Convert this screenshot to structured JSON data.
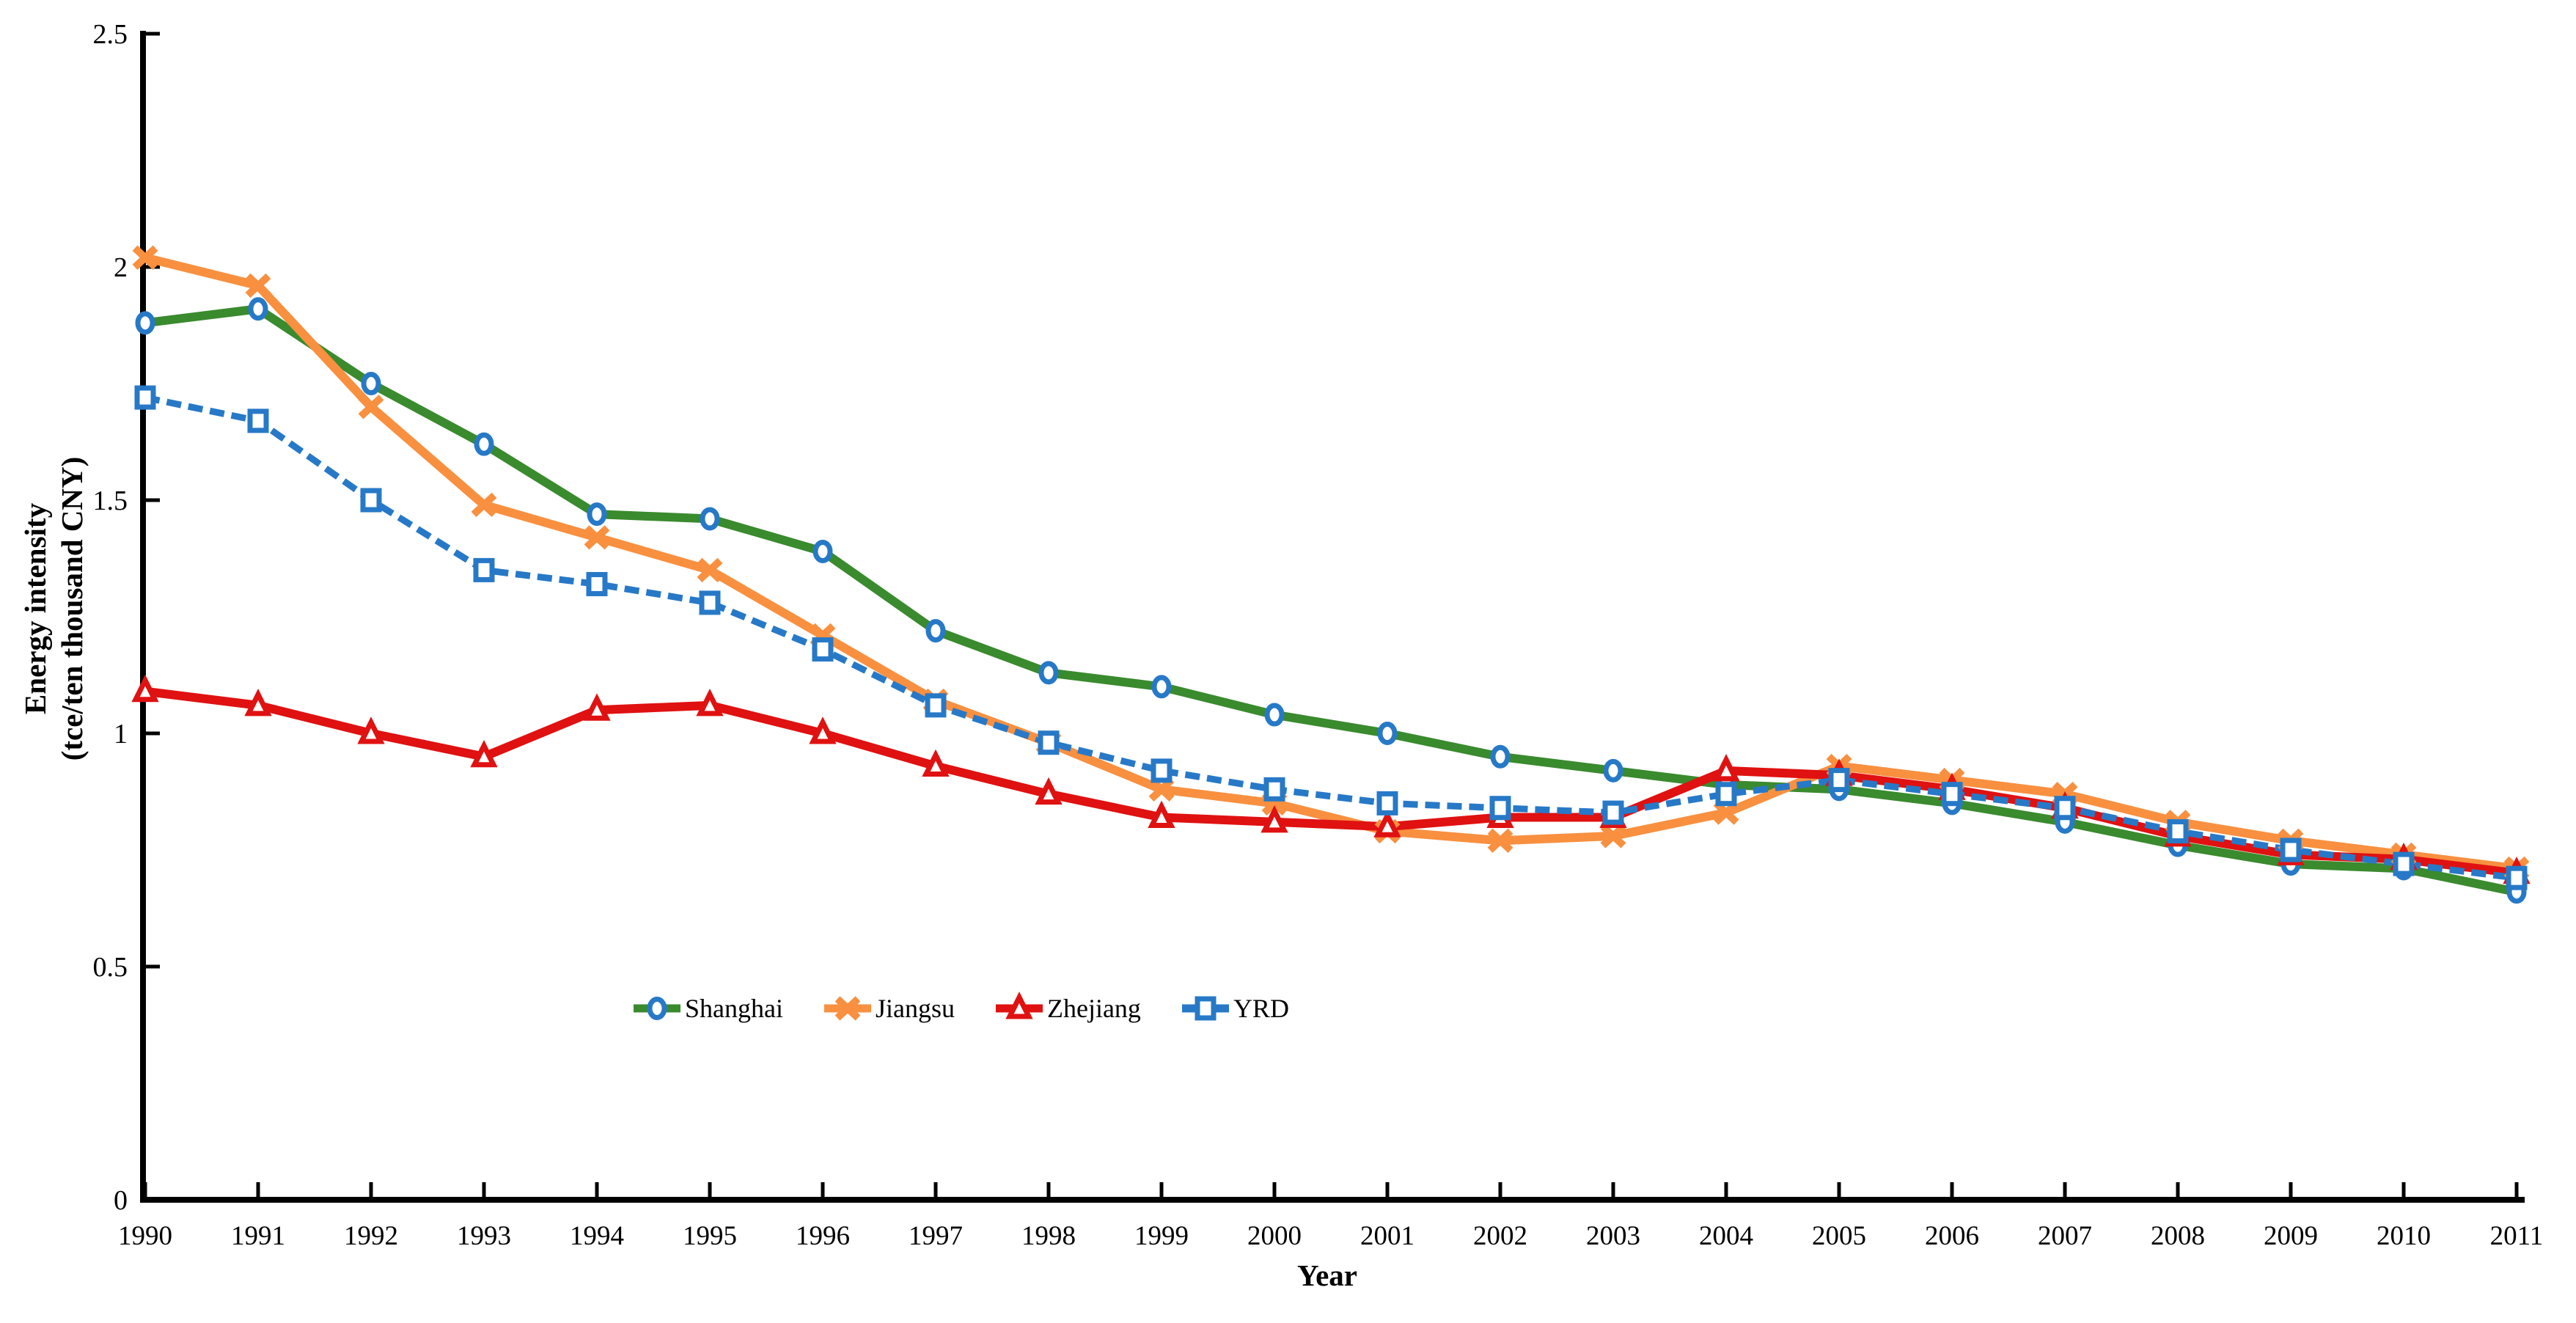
{
  "chart_data": {
    "type": "line",
    "title": "",
    "xlabel": "Year",
    "ylabel_lines": [
      "Energy intensity",
      "(tce/ten thousand CNY)"
    ],
    "x": [
      1990,
      1991,
      1992,
      1993,
      1994,
      1995,
      1996,
      1997,
      1998,
      1999,
      2000,
      2001,
      2002,
      2003,
      2004,
      2005,
      2006,
      2007,
      2008,
      2009,
      2010,
      2011
    ],
    "x_tick_labels": [
      "1990",
      "1991",
      "1992",
      "1993",
      "1994",
      "1995",
      "1996",
      "1997",
      "1998",
      "1999",
      "2000",
      "2001",
      "2002",
      "2003",
      "2004",
      "2005",
      "2006",
      "2007",
      "2008",
      "2009",
      "2010",
      "2011"
    ],
    "y_ticks": [
      0,
      0.5,
      1,
      1.5,
      2,
      2.5
    ],
    "y_tick_labels": [
      "0",
      "0.5",
      "1",
      "1.5",
      "2",
      "2.5"
    ],
    "ylim": [
      0,
      2.5
    ],
    "grid": false,
    "legend_position": "inside-bottom-left-row",
    "series": [
      {
        "name": "Shanghai",
        "color": "#3A8A2E",
        "marker": "circle",
        "marker_color": "#2779C7",
        "line_style": "solid",
        "values": [
          1.88,
          1.91,
          1.75,
          1.62,
          1.47,
          1.46,
          1.39,
          1.22,
          1.13,
          1.1,
          1.04,
          1.0,
          0.95,
          0.92,
          0.89,
          0.88,
          0.85,
          0.81,
          0.76,
          0.72,
          0.71,
          0.66
        ]
      },
      {
        "name": "Jiangsu",
        "color": "#F89040",
        "marker": "x",
        "marker_color": "#F89040",
        "line_style": "solid",
        "values": [
          2.02,
          1.96,
          1.7,
          1.49,
          1.42,
          1.35,
          1.21,
          1.07,
          0.98,
          0.88,
          0.85,
          0.79,
          0.77,
          0.78,
          0.83,
          0.93,
          0.9,
          0.87,
          0.81,
          0.77,
          0.74,
          0.71
        ]
      },
      {
        "name": "Zhejiang",
        "color": "#E01111",
        "marker": "triangle",
        "marker_color": "#E01111",
        "line_style": "solid",
        "values": [
          1.09,
          1.06,
          1.0,
          0.95,
          1.05,
          1.06,
          1.0,
          0.93,
          0.87,
          0.82,
          0.81,
          0.8,
          0.82,
          0.82,
          0.92,
          0.91,
          0.88,
          0.84,
          0.78,
          0.74,
          0.73,
          0.7
        ]
      },
      {
        "name": "YRD",
        "color": "#2779C7",
        "marker": "square",
        "marker_color": "#2779C7",
        "line_style": "dashed",
        "values": [
          1.72,
          1.67,
          1.5,
          1.35,
          1.32,
          1.28,
          1.18,
          1.06,
          0.98,
          0.92,
          0.88,
          0.85,
          0.84,
          0.83,
          0.87,
          0.9,
          0.87,
          0.84,
          0.79,
          0.75,
          0.72,
          0.69
        ]
      }
    ]
  }
}
